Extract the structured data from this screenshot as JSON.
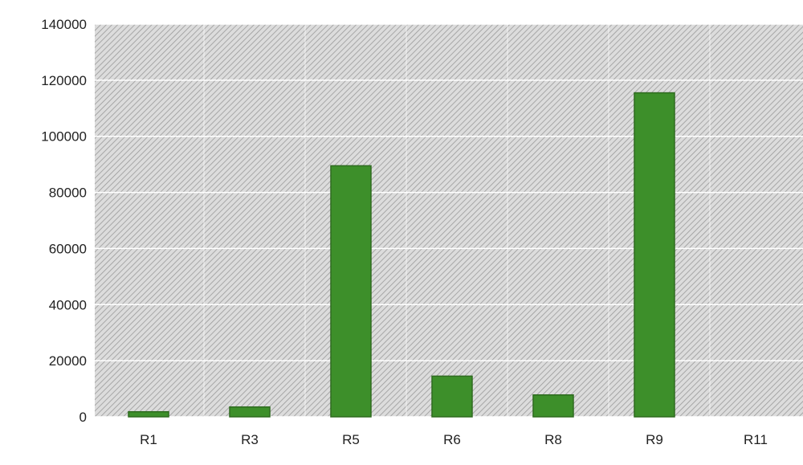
{
  "chart_data": {
    "type": "bar",
    "title": "",
    "xlabel": "",
    "ylabel": "",
    "categories": [
      "R1",
      "R3",
      "R5",
      "R6",
      "R8",
      "R9",
      "R11"
    ],
    "values": [
      1800,
      3500,
      89500,
      14500,
      7800,
      115500,
      0
    ],
    "ylim": [
      0,
      140000
    ],
    "yticks": [
      "0",
      "20000",
      "40000",
      "60000",
      "80000",
      "100000",
      "120000",
      "140000"
    ],
    "grid": true,
    "legend": "none",
    "colors": {
      "bar_fill": "#3d8f2a",
      "bar_stroke": "#2e6b1f",
      "plot_background": "#dcdcdc",
      "hatch": "#9a9a9a",
      "gridline": "#ffffff"
    }
  }
}
